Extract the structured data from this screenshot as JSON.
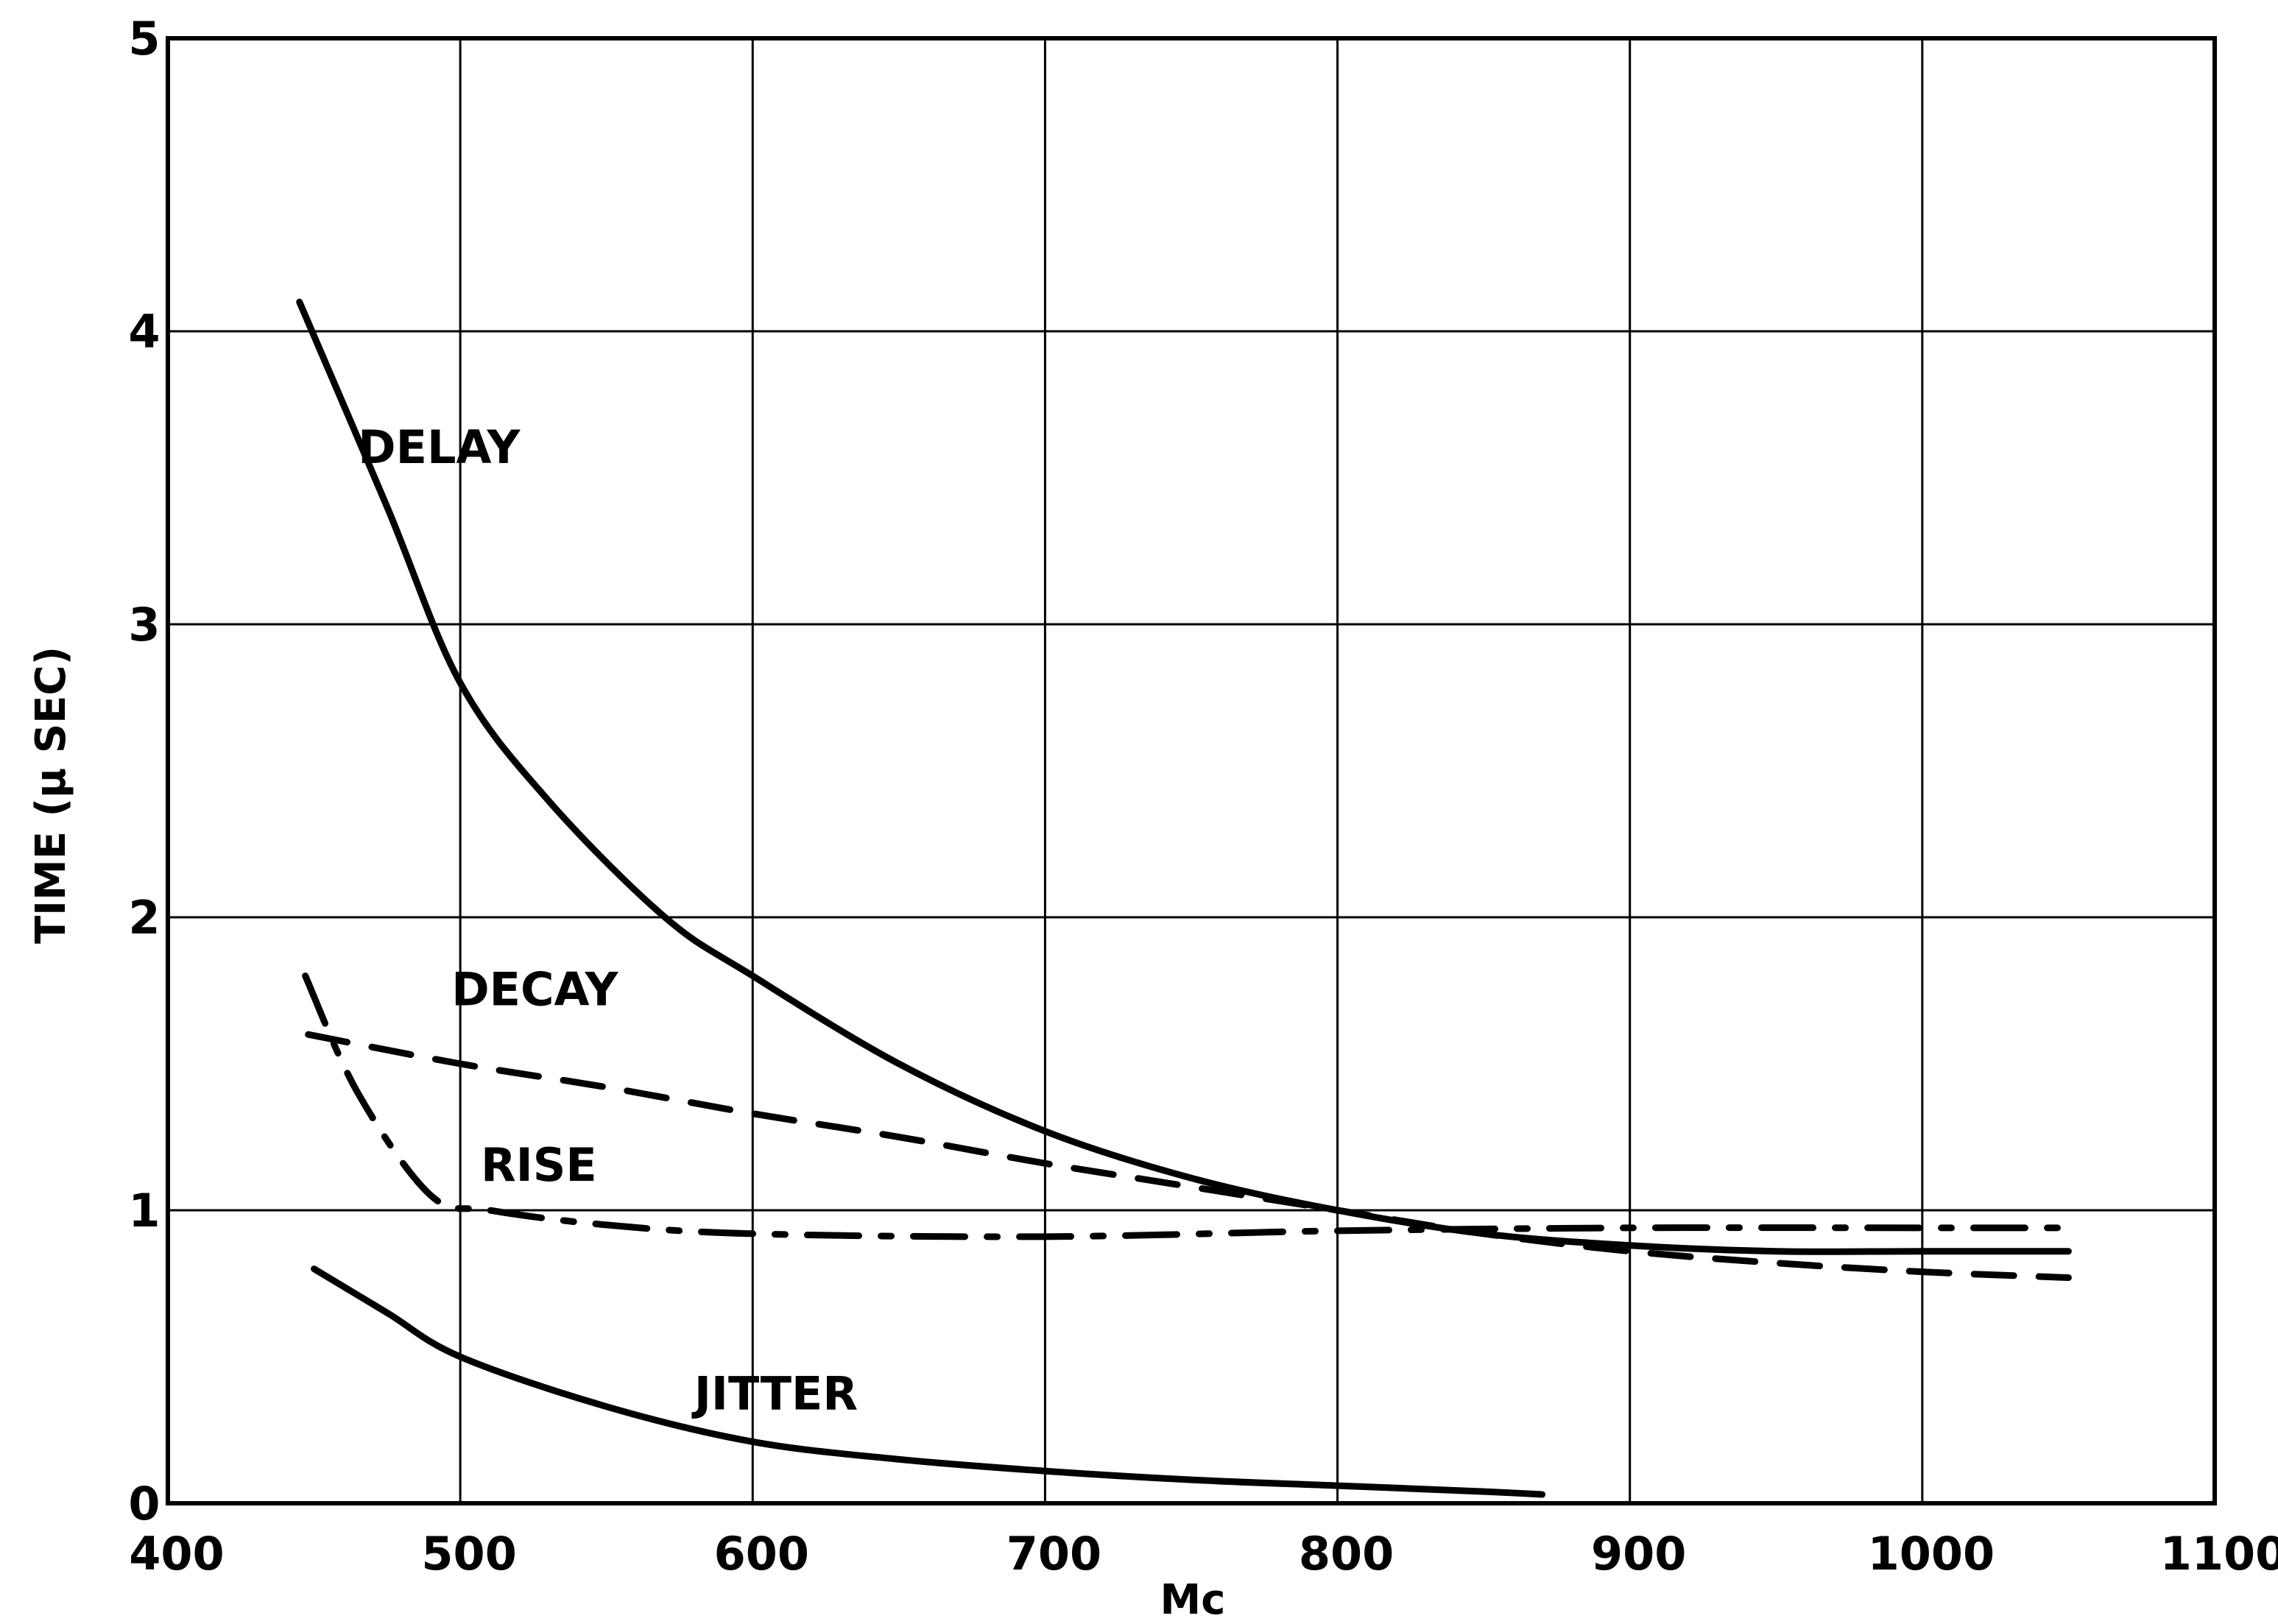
{
  "chart_data": {
    "type": "line",
    "title": "",
    "xlabel": "Mc",
    "ylabel": "TIME (μ SEC)",
    "xlim": [
      400,
      1100
    ],
    "ylim": [
      0,
      5
    ],
    "x_ticks": [
      400,
      500,
      600,
      700,
      800,
      900,
      1000,
      1100
    ],
    "x_tick_labels": [
      "400",
      "500",
      "600",
      "700",
      "800",
      "900",
      "1000",
      "1100"
    ],
    "y_ticks": [
      0,
      1,
      2,
      3,
      4,
      5
    ],
    "y_tick_labels": [
      "0",
      "1",
      "2",
      "3",
      "4",
      "5"
    ],
    "grid": true,
    "legend": "none",
    "series": [
      {
        "name": "DELAY",
        "style": "solid",
        "points": [
          [
            445,
            4.1
          ],
          [
            475,
            3.4
          ],
          [
            500,
            2.8
          ],
          [
            530,
            2.4
          ],
          [
            570,
            2.0
          ],
          [
            600,
            1.8
          ],
          [
            650,
            1.5
          ],
          [
            700,
            1.27
          ],
          [
            750,
            1.11
          ],
          [
            800,
            1.0
          ],
          [
            850,
            0.92
          ],
          [
            900,
            0.88
          ],
          [
            950,
            0.86
          ],
          [
            1000,
            0.86
          ],
          [
            1050,
            0.86
          ]
        ],
        "label_at": [
          465,
          3.55
        ]
      },
      {
        "name": "DECAY",
        "style": "dashed",
        "points": [
          [
            448,
            1.6
          ],
          [
            500,
            1.5
          ],
          [
            550,
            1.42
          ],
          [
            600,
            1.33
          ],
          [
            650,
            1.25
          ],
          [
            700,
            1.16
          ],
          [
            750,
            1.08
          ],
          [
            800,
            1.0
          ],
          [
            850,
            0.92
          ],
          [
            900,
            0.86
          ],
          [
            950,
            0.82
          ],
          [
            1000,
            0.79
          ],
          [
            1050,
            0.77
          ]
        ],
        "label_at": [
          497,
          1.7
        ]
      },
      {
        "name": "RISE",
        "style": "dash-dot",
        "points": [
          [
            447,
            1.8
          ],
          [
            465,
            1.4
          ],
          [
            490,
            1.05
          ],
          [
            510,
            1.0
          ],
          [
            550,
            0.95
          ],
          [
            600,
            0.92
          ],
          [
            700,
            0.91
          ],
          [
            800,
            0.93
          ],
          [
            900,
            0.94
          ],
          [
            1000,
            0.94
          ],
          [
            1050,
            0.94
          ]
        ],
        "label_at": [
          507,
          1.1
        ]
      },
      {
        "name": "JITTER",
        "style": "solid",
        "points": [
          [
            450,
            0.8
          ],
          [
            475,
            0.65
          ],
          [
            500,
            0.5
          ],
          [
            550,
            0.33
          ],
          [
            600,
            0.21
          ],
          [
            650,
            0.15
          ],
          [
            700,
            0.11
          ],
          [
            750,
            0.08
          ],
          [
            800,
            0.06
          ],
          [
            850,
            0.04
          ],
          [
            870,
            0.03
          ]
        ],
        "label_at": [
          580,
          0.32
        ]
      }
    ]
  }
}
